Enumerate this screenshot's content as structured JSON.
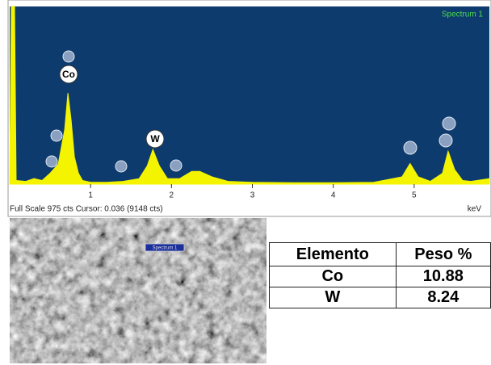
{
  "chart_data": {
    "type": "area",
    "title": "Spectrum 1",
    "status_text": "Full Scale 975 cts Cursor: 0.036 (9148 cts)",
    "xlabel": "keV",
    "x": [
      0.0,
      0.02,
      0.06,
      0.08,
      0.2,
      0.3,
      0.4,
      0.5,
      0.6,
      0.68,
      0.72,
      0.76,
      0.8,
      0.85,
      0.9,
      1.0,
      1.2,
      1.4,
      1.6,
      1.7,
      1.77,
      1.85,
      1.95,
      2.1,
      2.25,
      2.35,
      2.5,
      2.7,
      3.0,
      3.5,
      4.0,
      4.5,
      4.85,
      4.95,
      5.05,
      5.2,
      5.35,
      5.42,
      5.5,
      5.6,
      5.7,
      5.93
    ],
    "values": [
      0,
      975,
      975,
      20,
      15,
      30,
      20,
      60,
      110,
      300,
      500,
      350,
      150,
      60,
      20,
      10,
      10,
      15,
      30,
      100,
      190,
      100,
      30,
      30,
      70,
      70,
      40,
      15,
      10,
      8,
      8,
      10,
      40,
      113,
      40,
      15,
      60,
      181,
      80,
      20,
      15,
      30
    ],
    "color": "#f4f400",
    "background": "#0d3b6e",
    "xlim": [
      0,
      5.93
    ],
    "ylim": [
      0,
      975
    ],
    "xticks": [
      1,
      2,
      3,
      4,
      5
    ],
    "peak_labels": [
      "Co",
      "W"
    ]
  },
  "image_label": "Spectrum 1",
  "table": {
    "header": [
      "Elemento",
      "Peso %"
    ],
    "rows": [
      [
        "Co",
        10.88
      ],
      [
        "W",
        8.24
      ]
    ]
  }
}
